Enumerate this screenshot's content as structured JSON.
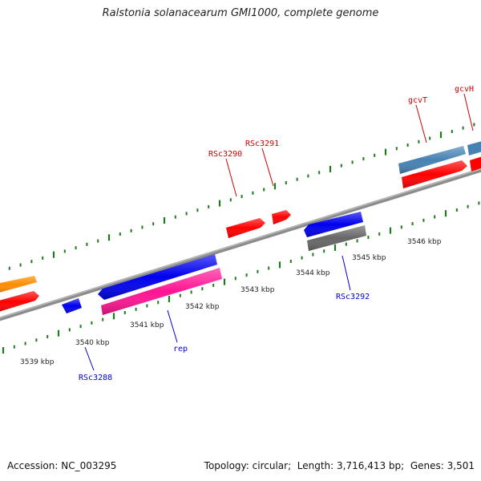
{
  "title": "Ralstonia solanacearum GMI1000, complete genome",
  "footer": {
    "accession_label": "Accession:",
    "accession": "NC_003295",
    "topology_label": "Topology:",
    "topology": "circular",
    "length_label": "Length:",
    "length": "3,716,413 bp",
    "genes_label": "Genes:",
    "genes": "3,501"
  },
  "scale": {
    "unit": "kbp",
    "ticks": [
      "3539 kbp",
      "3540 kbp",
      "3541 kbp",
      "3542 kbp",
      "3543 kbp",
      "3544 kbp",
      "3545 kbp",
      "3546 kbp"
    ]
  },
  "colors": {
    "backbone": "#8c8c8c",
    "tick": "#1e7a1e",
    "plus_label": "#cc0000",
    "minus_label": "#0000cc",
    "orange": "#ff8c00",
    "red": "#ff0000",
    "blue": "#0000ee",
    "pink": "#ff1493",
    "steel": "#4682b4",
    "gray": "#666666"
  },
  "labels": {
    "plus": [
      "RSc3290",
      "RSc3291",
      "gcvT",
      "gcvH"
    ],
    "minus": [
      "RSc3288",
      "rep",
      "RSc3292"
    ]
  }
}
